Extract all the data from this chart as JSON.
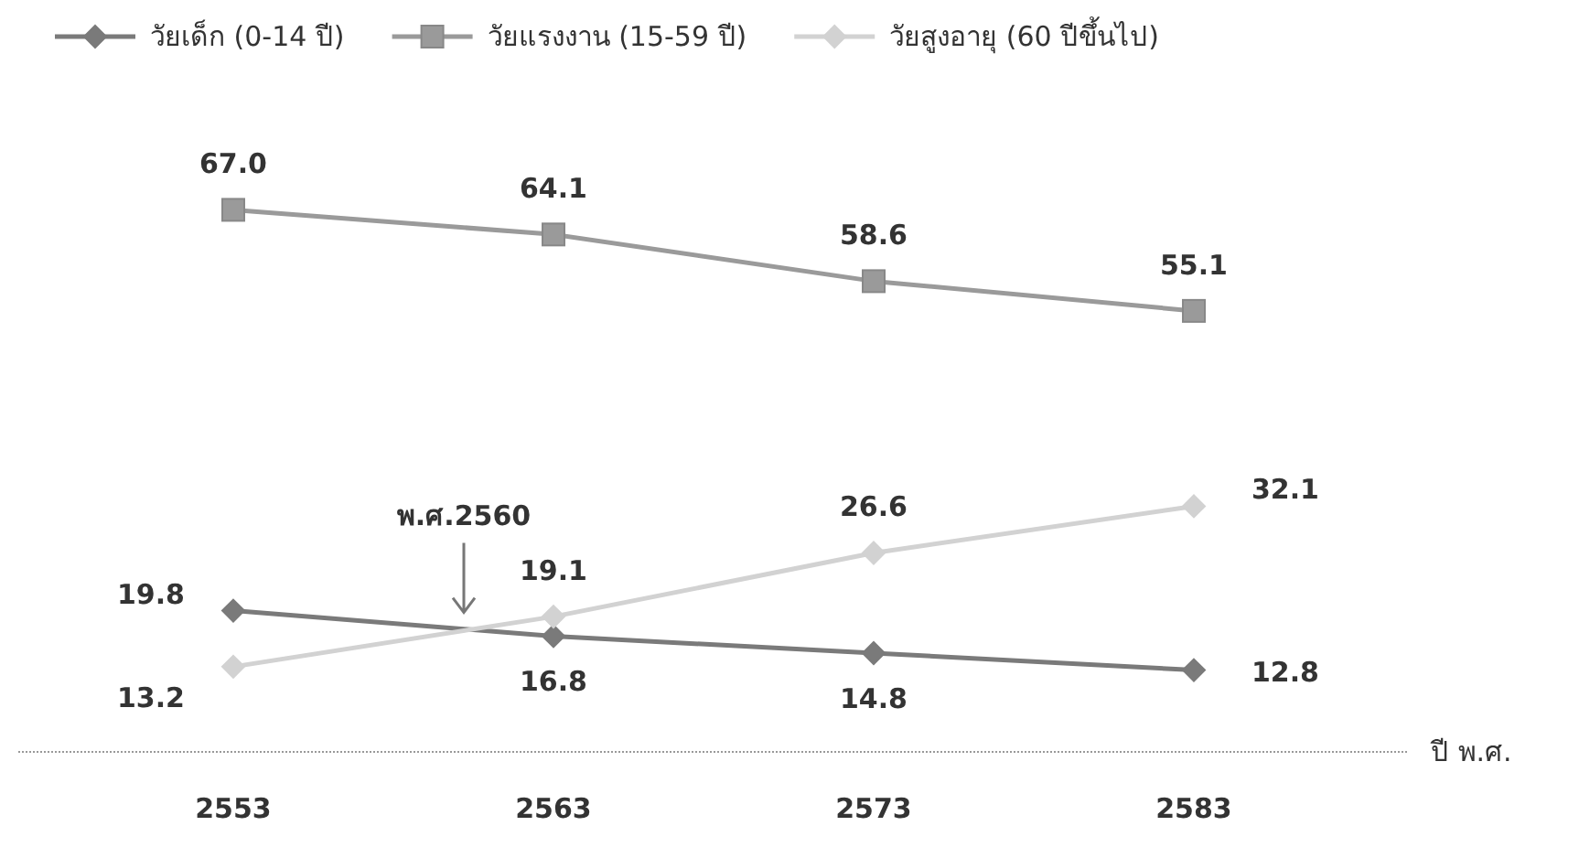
{
  "chart_data": {
    "type": "line",
    "categories": [
      "2553",
      "2563",
      "2573",
      "2583"
    ],
    "xlabel": "ปี พ.ศ.",
    "tick_labels": "x",
    "grid": false,
    "legend": "top",
    "data_labels": true,
    "series": [
      {
        "name": "วัยเด็ก (0-14 ปี)",
        "color": "#7a7a7a",
        "marker": "diamond",
        "values": [
          19.8,
          16.8,
          14.8,
          12.8
        ],
        "value_labels": [
          "19.8",
          "16.8",
          "14.8",
          "12.8"
        ]
      },
      {
        "name": "วัยแรงงาน (15-59 ปี)",
        "color": "#9a9a9a",
        "marker": "square",
        "values": [
          67.0,
          64.1,
          58.6,
          55.1
        ],
        "value_labels": [
          "67.0",
          "64.1",
          "58.6",
          "55.1"
        ]
      },
      {
        "name": "วัยสูงอายุ (60 ปีขึ้นไป)",
        "color": "#d2d2d2",
        "marker": "diamond",
        "values": [
          13.2,
          19.1,
          26.6,
          32.1
        ],
        "value_labels": [
          "13.2",
          "19.1",
          "26.6",
          "32.1"
        ]
      }
    ],
    "annotations": [
      "พ.ศ.2560"
    ]
  }
}
